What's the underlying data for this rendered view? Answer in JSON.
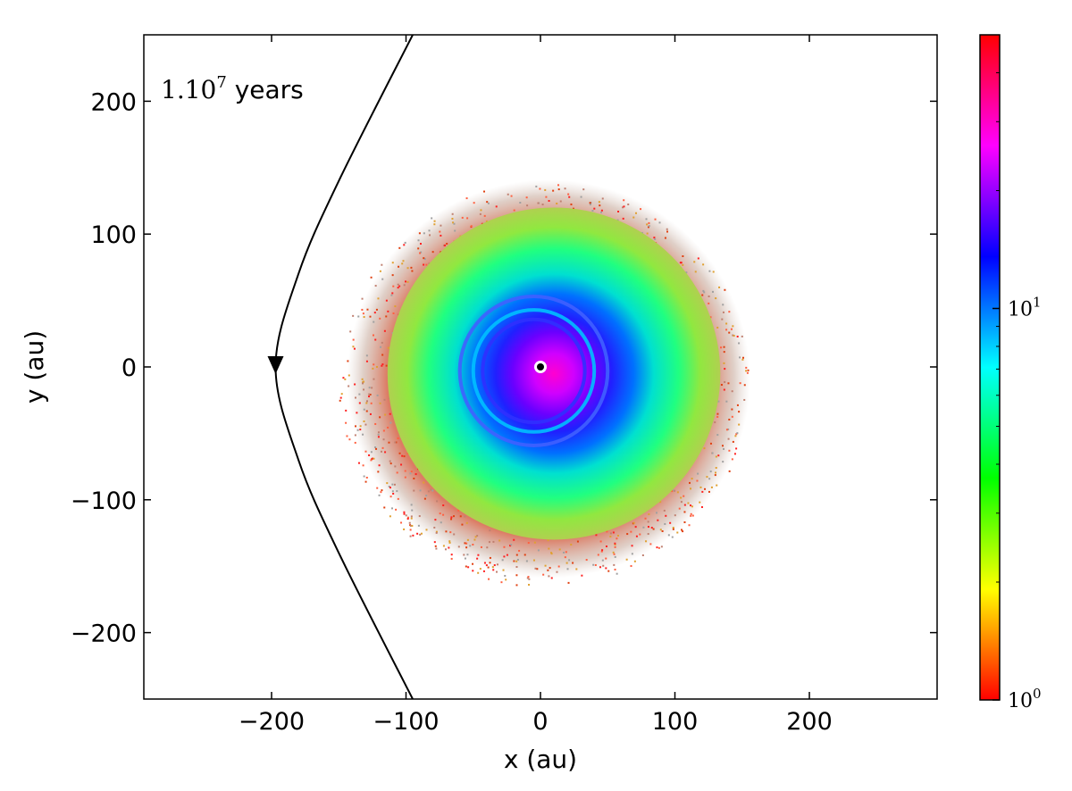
{
  "chart_data": {
    "type": "scatter",
    "title": "",
    "xlabel": "x (au)",
    "ylabel": "y (au)",
    "xlim": [
      -295,
      295
    ],
    "ylim": [
      -250,
      250
    ],
    "xticks": [
      -200,
      -100,
      0,
      100,
      200
    ],
    "xtick_labels": [
      "−200",
      "−100",
      "0",
      "100",
      "200"
    ],
    "yticks": [
      -200,
      -100,
      0,
      100,
      200
    ],
    "ytick_labels": [
      "−200",
      "−100",
      "0",
      "100",
      "200"
    ],
    "grid": false,
    "annotation": {
      "prefix": "1.10",
      "exponent": "7",
      "suffix": " years"
    },
    "colorbar": {
      "scale": "log",
      "range": [
        1,
        50
      ],
      "ticks": [
        1,
        10
      ],
      "tick_labels": [
        {
          "base": "10",
          "exp": "0"
        },
        {
          "base": "10",
          "exp": "1"
        }
      ],
      "colormap": [
        "#ff0000",
        "#ff8000",
        "#ffff00",
        "#80ff00",
        "#00ff00",
        "#00ff80",
        "#00ffff",
        "#0080ff",
        "#0000ff",
        "#8000ff",
        "#ff00ff",
        "#ff0080",
        "#ff0000"
      ]
    },
    "disk": {
      "center": [
        10,
        -5
      ],
      "outer_radius": 125,
      "halo_radius": 150,
      "inner_hole_radius": 4,
      "rings": [
        {
          "radius": 55,
          "color": "#4060ff"
        },
        {
          "radius": 45,
          "color": "#00c0ff"
        },
        {
          "radius": 38,
          "color": "#3030ff"
        }
      ]
    },
    "orbit": {
      "description_points": [
        [
          -95,
          250
        ],
        [
          -150,
          140
        ],
        [
          -180,
          70
        ],
        [
          -197,
          0
        ],
        [
          -180,
          -70
        ],
        [
          -150,
          -140
        ],
        [
          -95,
          -250
        ]
      ],
      "marker": [
        -197,
        0
      ],
      "marker_direction": "down"
    },
    "central_star": [
      0,
      0
    ]
  }
}
